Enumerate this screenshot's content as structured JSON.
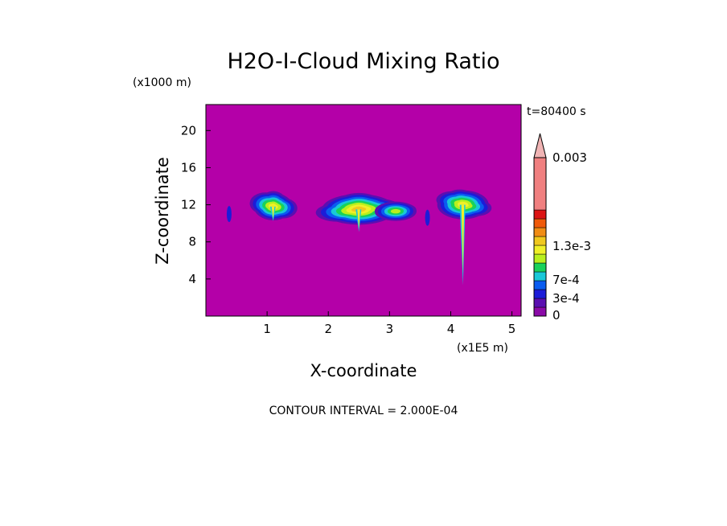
{
  "chart_data": {
    "type": "heatmap",
    "title": "H2O-I-Cloud Mixing Ratio",
    "z_unit": "(x1000 m)",
    "x_unit": "(x1E5 m)",
    "time_label": "t=80400 s",
    "xlabel": "X-coordinate",
    "ylabel": "Z-coordinate",
    "xlim": [
      0,
      5.15
    ],
    "ylim": [
      0,
      22.8
    ],
    "x_ticks": [
      "1",
      "2",
      "3",
      "4",
      "5"
    ],
    "y_ticks": [
      "4",
      "8",
      "12",
      "16",
      "20"
    ],
    "contour_interval_text": "CONTOUR INTERVAL = 2.000E-04",
    "colorbar": {
      "labels": [
        "0.003",
        "1.3e-3",
        "7e-4",
        "3e-4",
        "0"
      ],
      "levels": [
        0,
        0.0001,
        0.0002,
        0.0003,
        0.0004,
        0.0005,
        0.0006,
        0.0007,
        0.0009,
        0.0011,
        0.0013,
        0.0016,
        0.003
      ],
      "colors": [
        "#8b0aa8",
        "#5a0fb0",
        "#1c1cd8",
        "#0a5cf0",
        "#19c8d8",
        "#19d25a",
        "#b8f01e",
        "#f0f028",
        "#f0c81e",
        "#f08c14",
        "#f05a0a",
        "#dc1414",
        "#f08080"
      ],
      "extend_color": "#f0b4b4"
    },
    "background_color": "#b400a8",
    "cloud_regions": [
      {
        "x": 1.1,
        "z": 11.8,
        "max_level": 7
      },
      {
        "x": 2.5,
        "z": 11.5,
        "max_level": 8
      },
      {
        "x": 3.1,
        "z": 11.3,
        "max_level": 6
      },
      {
        "x": 4.2,
        "z": 12.0,
        "max_level": 7
      }
    ]
  }
}
